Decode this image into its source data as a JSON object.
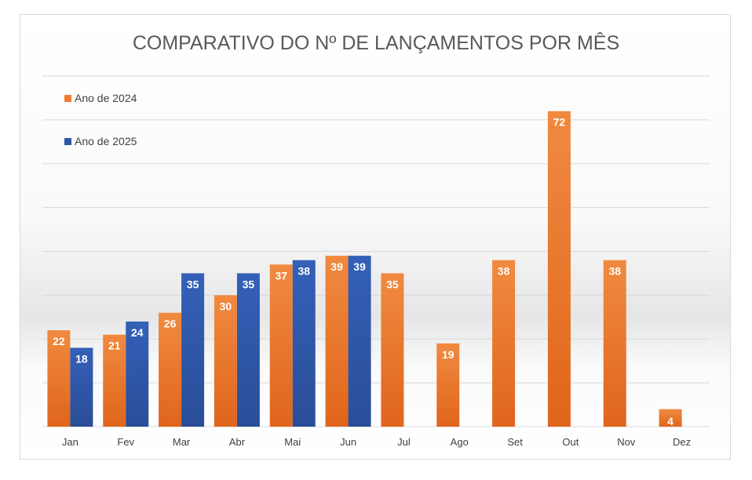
{
  "colors": {
    "series_2024": "#ED7D31",
    "series_2025": "#2F55A4",
    "gridline": "#d9d9d9",
    "text": "#404040"
  },
  "chart_data": {
    "type": "bar",
    "title": "COMPARATIVO DO Nº DE LANÇAMENTOS POR MÊS",
    "xlabel": "",
    "ylabel": "",
    "categories": [
      "Jan",
      "Fev",
      "Mar",
      "Abr",
      "Mai",
      "Jun",
      "Jul",
      "Ago",
      "Set",
      "Out",
      "Nov",
      "Dez"
    ],
    "series": [
      {
        "name": "Ano de 2024",
        "color": "#ED7D31",
        "values": [
          22,
          21,
          26,
          30,
          37,
          39,
          35,
          19,
          38,
          72,
          38,
          4
        ]
      },
      {
        "name": "Ano de 2025",
        "color": "#2F55A4",
        "values": [
          18,
          24,
          35,
          35,
          38,
          39,
          0,
          0,
          0,
          0,
          0,
          0
        ]
      }
    ],
    "ylim": [
      0,
      80
    ],
    "y_grid_step": 10,
    "grid": true,
    "legend_position": "top-left",
    "data_labels": true
  }
}
